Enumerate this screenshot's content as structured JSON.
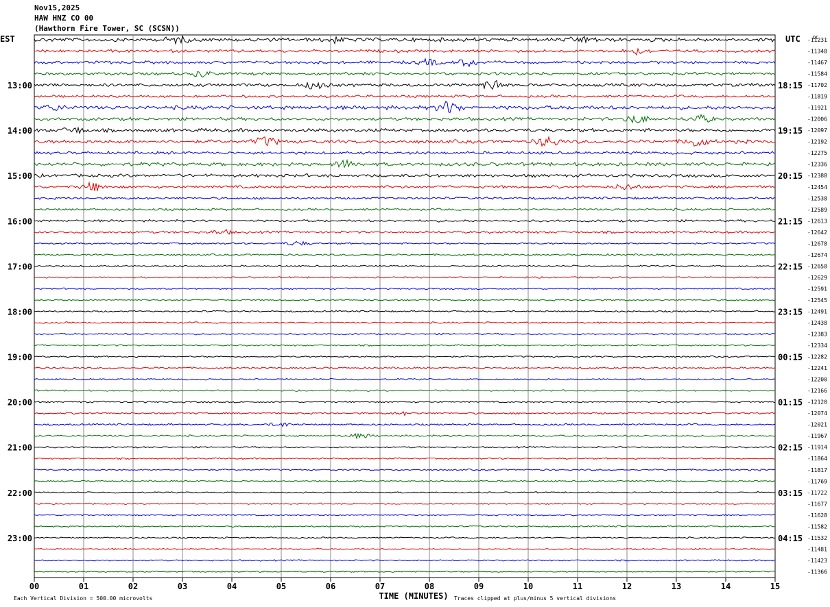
{
  "header": {
    "date": "Nov15,2025",
    "station": "HAW HNZ CO 00",
    "location": "(Hawthorn Fire Tower, SC (SCSN))"
  },
  "chart_data": {
    "type": "line",
    "title": "Nov15,2025",
    "xlabel": "TIME (MINUTES)",
    "left_axis_label": "EST",
    "right_axis_label": "UTC",
    "dc_label": "DC",
    "x_ticks": [
      "00",
      "01",
      "02",
      "03",
      "04",
      "05",
      "06",
      "07",
      "08",
      "09",
      "10",
      "11",
      "12",
      "13",
      "14",
      "15"
    ],
    "xlim": [
      0,
      15
    ],
    "grid": true,
    "trace_colors": [
      "#000000",
      "#e00000",
      "#0000e0",
      "#007000"
    ],
    "left_hour_labels": [
      "13:00",
      "14:00",
      "15:00",
      "16:00",
      "17:00",
      "18:00",
      "19:00",
      "20:00",
      "21:00",
      "22:00",
      "23:00"
    ],
    "right_hour_labels": [
      "18:15",
      "19:15",
      "20:15",
      "21:15",
      "22:15",
      "23:15",
      "00:15",
      "01:15",
      "02:15",
      "03:15",
      "04:15"
    ],
    "dc_offsets": [
      "-11231",
      "-11348",
      "-11467",
      "-11584",
      "-11702",
      "-11819",
      "-11921",
      "-12006",
      "-12097",
      "-12192",
      "-12275",
      "-12336",
      "-12388",
      "-12454",
      "-12538",
      "-12589",
      "-12613",
      "-12642",
      "-12678",
      "-12674",
      "-12658",
      "-12629",
      "-12591",
      "-12545",
      "-12491",
      "-12438",
      "-12383",
      "-12334",
      "-12282",
      "-12241",
      "-12200",
      "-12166",
      "-12120",
      "-12074",
      "-12021",
      "-11967",
      "-11914",
      "-11864",
      "-11817",
      "-11769",
      "-11722",
      "-11677",
      "-11628",
      "-11582",
      "-11532",
      "-11481",
      "-11423",
      "-11366"
    ],
    "trace_amplitude": [
      2.2,
      1.6,
      1.6,
      1.6,
      1.8,
      1.4,
      2.2,
      1.8,
      2.0,
      2.0,
      1.6,
      2.0,
      1.8,
      1.6,
      1.3,
      1.3,
      1.3,
      1.3,
      1.0,
      1.0,
      1.0,
      0.9,
      0.9,
      0.9,
      0.9,
      0.9,
      0.9,
      0.9,
      0.9,
      0.9,
      0.9,
      0.9,
      1.0,
      1.0,
      1.0,
      1.0,
      0.9,
      0.9,
      0.9,
      0.9,
      0.8,
      0.8,
      0.8,
      0.8,
      0.8,
      0.8,
      0.8,
      0.8
    ],
    "events": [
      {
        "trace": 0,
        "minute": 2.9,
        "amp": 4
      },
      {
        "trace": 0,
        "minute": 6.1,
        "amp": 3
      },
      {
        "trace": 0,
        "minute": 11.1,
        "amp": 4
      },
      {
        "trace": 1,
        "minute": 12.2,
        "amp": 4
      },
      {
        "trace": 2,
        "minute": 8.0,
        "amp": 4
      },
      {
        "trace": 2,
        "minute": 8.8,
        "amp": 5
      },
      {
        "trace": 3,
        "minute": 3.4,
        "amp": 4
      },
      {
        "trace": 4,
        "minute": 5.7,
        "amp": 6
      },
      {
        "trace": 4,
        "minute": 9.3,
        "amp": 7
      },
      {
        "trace": 6,
        "minute": 0.4,
        "amp": 4
      },
      {
        "trace": 6,
        "minute": 8.4,
        "amp": 9
      },
      {
        "trace": 7,
        "minute": 12.2,
        "amp": 6
      },
      {
        "trace": 7,
        "minute": 13.5,
        "amp": 5
      },
      {
        "trace": 8,
        "minute": 0.8,
        "amp": 4
      },
      {
        "trace": 9,
        "minute": 4.7,
        "amp": 6
      },
      {
        "trace": 9,
        "minute": 10.4,
        "amp": 7
      },
      {
        "trace": 9,
        "minute": 13.4,
        "amp": 7
      },
      {
        "trace": 11,
        "minute": 6.3,
        "amp": 5
      },
      {
        "trace": 13,
        "minute": 1.2,
        "amp": 6
      },
      {
        "trace": 13,
        "minute": 12.0,
        "amp": 4
      },
      {
        "trace": 17,
        "minute": 3.8,
        "amp": 3
      },
      {
        "trace": 18,
        "minute": 5.3,
        "amp": 3
      },
      {
        "trace": 33,
        "minute": 7.5,
        "amp": 2
      },
      {
        "trace": 34,
        "minute": 5.0,
        "amp": 3
      },
      {
        "trace": 35,
        "minute": 6.6,
        "amp": 3
      }
    ],
    "footer_left": "Each Vertical Division =  500.00 microvolts",
    "footer_right": "Traces clipped at plus/minus 5 vertical divisions"
  }
}
